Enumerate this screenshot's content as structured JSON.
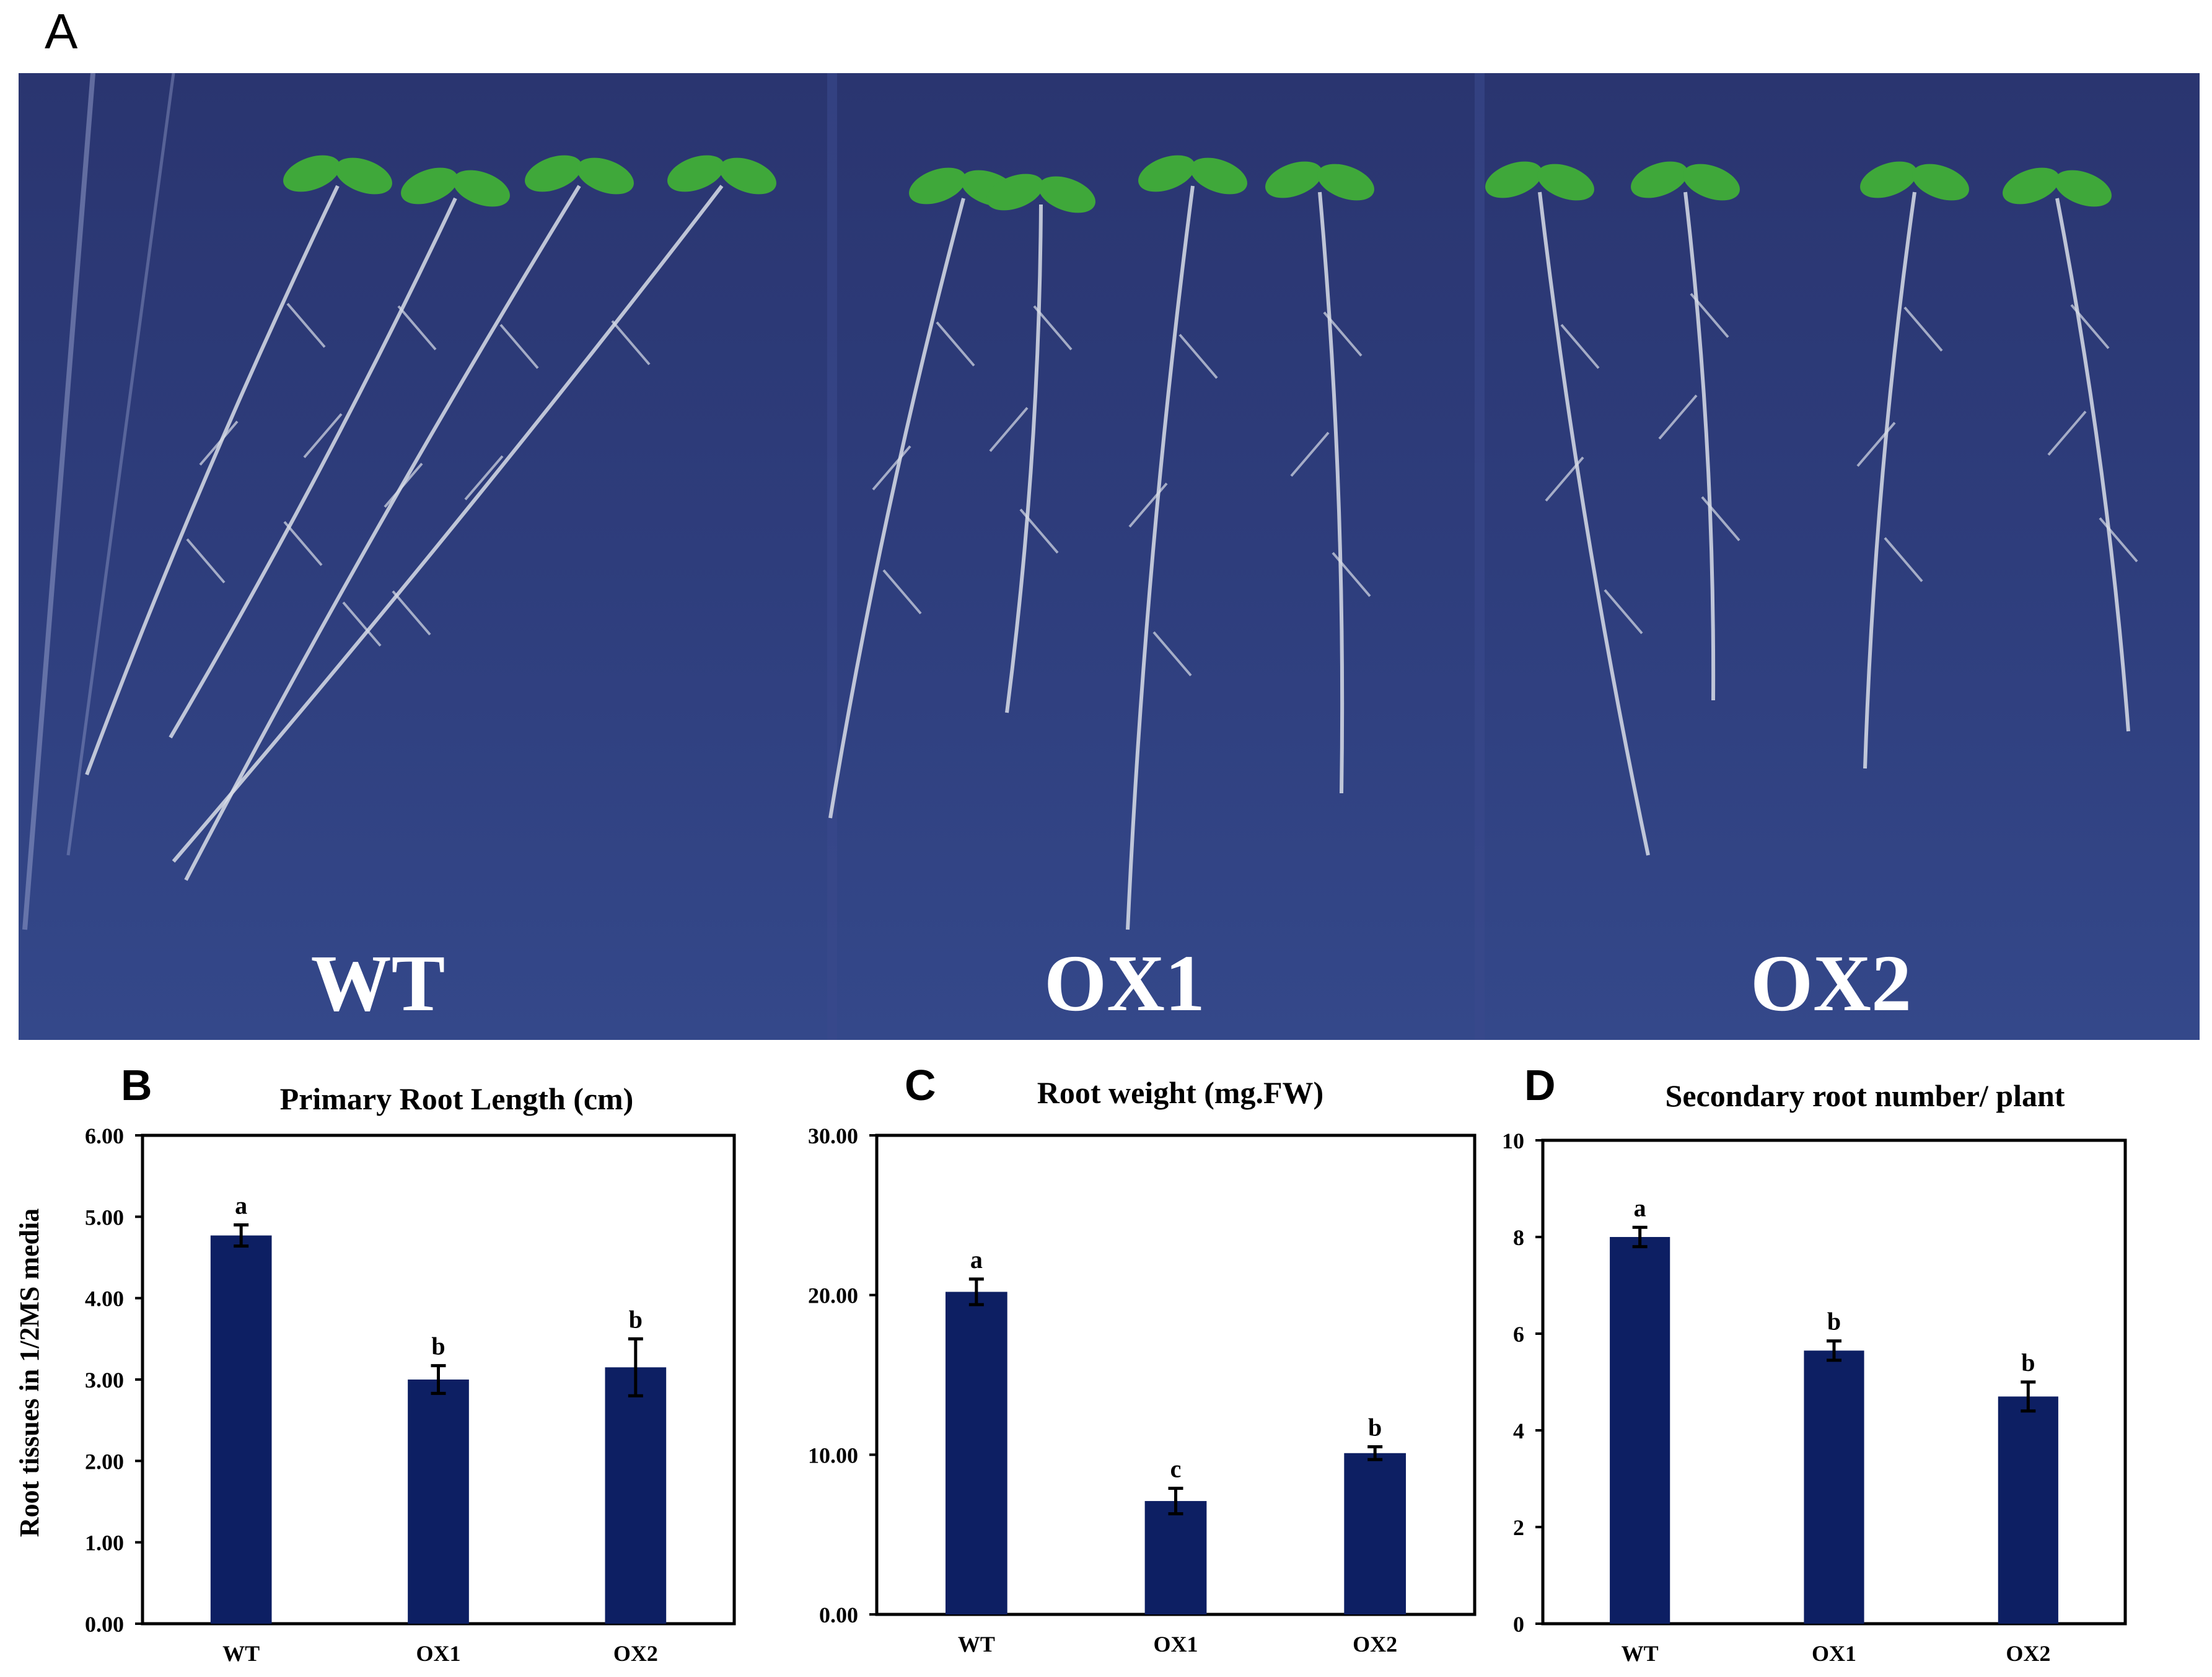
{
  "figure": {
    "panel_a": {
      "letter": "A",
      "groups": [
        "WT",
        "OX1",
        "OX2"
      ],
      "colors": {
        "plate": "#2c3a78",
        "leaf": "#3fa83a",
        "root": "#d8dde8",
        "label": "#ffffff"
      }
    },
    "shared_ylabel": "Root tissues in 1/2MS media",
    "bar_color": "#0d1f63"
  },
  "chart_data": [
    {
      "panel": "B",
      "type": "bar",
      "title": "Primary Root Length (cm)",
      "xlabel": "",
      "ylabel": "Root tissues in 1/2MS media",
      "categories": [
        "WT",
        "OX1",
        "OX2"
      ],
      "values": [
        4.77,
        3.0,
        3.15
      ],
      "errors": [
        0.13,
        0.17,
        0.35
      ],
      "significance": [
        "a",
        "b",
        "b"
      ],
      "ylim": [
        0,
        6
      ],
      "yticks": [
        "0.00",
        "1.00",
        "2.00",
        "3.00",
        "4.00",
        "5.00",
        "6.00"
      ],
      "grid": false
    },
    {
      "panel": "C",
      "type": "bar",
      "title": "Root weight (mg.FW)",
      "xlabel": "",
      "ylabel": "",
      "categories": [
        "WT",
        "OX1",
        "OX2"
      ],
      "values": [
        20.2,
        7.1,
        10.1
      ],
      "errors": [
        0.8,
        0.8,
        0.4
      ],
      "significance": [
        "a",
        "c",
        "b"
      ],
      "ylim": [
        0,
        30
      ],
      "yticks": [
        "0.00",
        "10.00",
        "20.00",
        "30.00"
      ],
      "grid": false
    },
    {
      "panel": "D",
      "type": "bar",
      "title": "Secondary root number/ plant",
      "xlabel": "",
      "ylabel": "",
      "categories": [
        "WT",
        "OX1",
        "OX2"
      ],
      "values": [
        8.0,
        5.65,
        4.7
      ],
      "errors": [
        0.2,
        0.2,
        0.3
      ],
      "significance": [
        "a",
        "b",
        "b"
      ],
      "ylim": [
        0,
        10
      ],
      "yticks": [
        "0",
        "2",
        "4",
        "6",
        "8",
        "10"
      ],
      "grid": false
    }
  ]
}
